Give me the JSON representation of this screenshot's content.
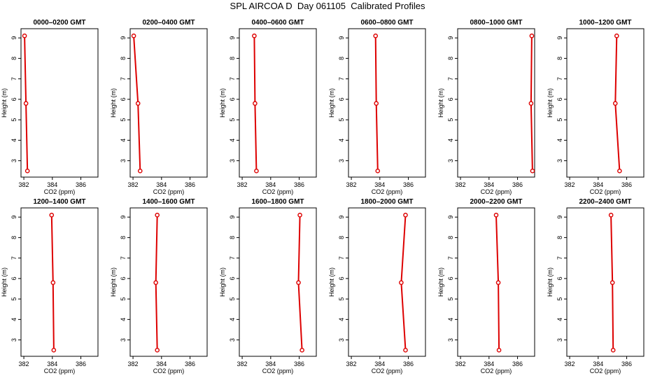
{
  "title": "SPL AIRCOA D  Day 061105  Calibrated Profiles",
  "colors": {
    "line": "#dd0000",
    "axis": "#000000",
    "background": "#ffffff"
  },
  "chart_data": [
    {
      "type": "line",
      "title": "0000–0200 GMT",
      "xlabel": "CO2 (ppm)",
      "ylabel": "Height (m)",
      "xlim": [
        381.8,
        387.2
      ],
      "ylim": [
        2.2,
        9.45
      ],
      "xticks": [
        382,
        384,
        386
      ],
      "yticks": [
        3,
        4,
        5,
        6,
        7,
        8,
        9
      ],
      "grid": false,
      "series": [
        {
          "x": [
            382.05,
            382.15,
            382.25
          ],
          "y": [
            9.1,
            5.8,
            2.5
          ]
        }
      ]
    },
    {
      "type": "line",
      "title": "0200–0400 GMT",
      "xlabel": "CO2 (ppm)",
      "ylabel": "Height (m)",
      "xlim": [
        381.8,
        387.2
      ],
      "ylim": [
        2.2,
        9.45
      ],
      "xticks": [
        382,
        384,
        386
      ],
      "yticks": [
        3,
        4,
        5,
        6,
        7,
        8,
        9
      ],
      "grid": false,
      "series": [
        {
          "x": [
            382.05,
            382.35,
            382.5
          ],
          "y": [
            9.1,
            5.8,
            2.5
          ]
        }
      ]
    },
    {
      "type": "line",
      "title": "0400–0600 GMT",
      "xlabel": "CO2 (ppm)",
      "ylabel": "Height (m)",
      "xlim": [
        381.8,
        387.2
      ],
      "ylim": [
        2.2,
        9.45
      ],
      "xticks": [
        382,
        384,
        386
      ],
      "yticks": [
        3,
        4,
        5,
        6,
        7,
        8,
        9
      ],
      "grid": false,
      "series": [
        {
          "x": [
            382.85,
            382.9,
            383.0
          ],
          "y": [
            9.1,
            5.8,
            2.5
          ]
        }
      ]
    },
    {
      "type": "line",
      "title": "0600–0800 GMT",
      "xlabel": "CO2 (ppm)",
      "ylabel": "Height (m)",
      "xlim": [
        381.8,
        387.2
      ],
      "ylim": [
        2.2,
        9.45
      ],
      "xticks": [
        382,
        384,
        386
      ],
      "yticks": [
        3,
        4,
        5,
        6,
        7,
        8,
        9
      ],
      "grid": false,
      "series": [
        {
          "x": [
            383.7,
            383.75,
            383.85
          ],
          "y": [
            9.1,
            5.8,
            2.5
          ]
        }
      ]
    },
    {
      "type": "line",
      "title": "0800–1000 GMT",
      "xlabel": "CO2 (ppm)",
      "ylabel": "Height (m)",
      "xlim": [
        381.8,
        387.2
      ],
      "ylim": [
        2.2,
        9.45
      ],
      "xticks": [
        382,
        384,
        386
      ],
      "yticks": [
        3,
        4,
        5,
        6,
        7,
        8,
        9
      ],
      "grid": false,
      "series": [
        {
          "x": [
            387.0,
            386.95,
            387.05
          ],
          "y": [
            9.1,
            5.8,
            2.5
          ]
        }
      ]
    },
    {
      "type": "line",
      "title": "1000–1200 GMT",
      "xlabel": "CO2 (ppm)",
      "ylabel": "Height (m)",
      "xlim": [
        381.8,
        387.2
      ],
      "ylim": [
        2.2,
        9.45
      ],
      "xticks": [
        382,
        384,
        386
      ],
      "yticks": [
        3,
        4,
        5,
        6,
        7,
        8,
        9
      ],
      "grid": false,
      "series": [
        {
          "x": [
            385.3,
            385.2,
            385.5
          ],
          "y": [
            9.1,
            5.8,
            2.5
          ]
        }
      ]
    },
    {
      "type": "line",
      "title": "1200–1400 GMT",
      "xlabel": "CO2 (ppm)",
      "ylabel": "Height (m)",
      "xlim": [
        381.8,
        387.2
      ],
      "ylim": [
        2.2,
        9.45
      ],
      "xticks": [
        382,
        384,
        386
      ],
      "yticks": [
        3,
        4,
        5,
        6,
        7,
        8,
        9
      ],
      "grid": false,
      "series": [
        {
          "x": [
            383.95,
            384.05,
            384.1
          ],
          "y": [
            9.1,
            5.8,
            2.5
          ]
        }
      ]
    },
    {
      "type": "line",
      "title": "1400–1600 GMT",
      "xlabel": "CO2 (ppm)",
      "ylabel": "Height (m)",
      "xlim": [
        381.8,
        387.2
      ],
      "ylim": [
        2.2,
        9.45
      ],
      "xticks": [
        382,
        384,
        386
      ],
      "yticks": [
        3,
        4,
        5,
        6,
        7,
        8,
        9
      ],
      "grid": false,
      "series": [
        {
          "x": [
            383.7,
            383.6,
            383.7
          ],
          "y": [
            9.1,
            5.8,
            2.5
          ]
        }
      ]
    },
    {
      "type": "line",
      "title": "1600–1800 GMT",
      "xlabel": "CO2 (ppm)",
      "ylabel": "Height (m)",
      "xlim": [
        381.8,
        387.2
      ],
      "ylim": [
        2.2,
        9.45
      ],
      "xticks": [
        382,
        384,
        386
      ],
      "yticks": [
        3,
        4,
        5,
        6,
        7,
        8,
        9
      ],
      "grid": false,
      "series": [
        {
          "x": [
            386.05,
            385.95,
            386.2
          ],
          "y": [
            9.1,
            5.8,
            2.5
          ]
        }
      ]
    },
    {
      "type": "line",
      "title": "1800–2000 GMT",
      "xlabel": "CO2 (ppm)",
      "ylabel": "Height (m)",
      "xlim": [
        381.8,
        387.2
      ],
      "ylim": [
        2.2,
        9.45
      ],
      "xticks": [
        382,
        384,
        386
      ],
      "yticks": [
        3,
        4,
        5,
        6,
        7,
        8,
        9
      ],
      "grid": false,
      "series": [
        {
          "x": [
            385.8,
            385.5,
            385.8
          ],
          "y": [
            9.1,
            5.8,
            2.5
          ]
        }
      ]
    },
    {
      "type": "line",
      "title": "2000–2200 GMT",
      "xlabel": "CO2 (ppm)",
      "ylabel": "Height (m)",
      "xlim": [
        381.8,
        387.2
      ],
      "ylim": [
        2.2,
        9.45
      ],
      "xticks": [
        382,
        384,
        386
      ],
      "yticks": [
        3,
        4,
        5,
        6,
        7,
        8,
        9
      ],
      "grid": false,
      "series": [
        {
          "x": [
            384.5,
            384.65,
            384.7
          ],
          "y": [
            9.1,
            5.8,
            2.5
          ]
        }
      ]
    },
    {
      "type": "line",
      "title": "2200–2400 GMT",
      "xlabel": "CO2 (ppm)",
      "ylabel": "Height (m)",
      "xlim": [
        381.8,
        387.2
      ],
      "ylim": [
        2.2,
        9.45
      ],
      "xticks": [
        382,
        384,
        386
      ],
      "yticks": [
        3,
        4,
        5,
        6,
        7,
        8,
        9
      ],
      "grid": false,
      "series": [
        {
          "x": [
            384.9,
            385.0,
            385.05
          ],
          "y": [
            9.1,
            5.8,
            2.5
          ]
        }
      ]
    }
  ]
}
